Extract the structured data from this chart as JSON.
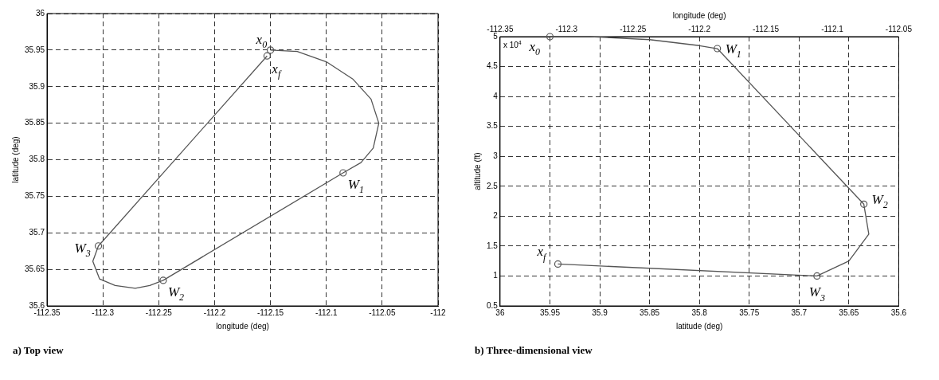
{
  "chart_data": [
    {
      "type": "line",
      "title": "a) Top view",
      "xlabel": "longitude (deg)",
      "ylabel": "latitude (deg)",
      "xlim": [
        -112.35,
        -112
      ],
      "xticks": [
        -112.35,
        -112.3,
        -112.25,
        -112.2,
        -112.15,
        -112.1,
        -112.05,
        -112
      ],
      "ylim": [
        35.6,
        36
      ],
      "yticks": [
        35.6,
        35.65,
        35.7,
        35.75,
        35.8,
        35.85,
        35.9,
        35.95,
        36
      ],
      "grid": true,
      "legend": false,
      "series": [
        {
          "type": "line",
          "color": "#555555",
          "marker": "none",
          "line_style": "solid",
          "x": [
            -112.15,
            -112.126,
            -112.1,
            -112.076,
            -112.06,
            -112.053,
            -112.058,
            -112.069,
            -112.085,
            -112.246,
            -112.258,
            -112.271,
            -112.289,
            -112.303,
            -112.309,
            -112.304,
            -112.153
          ],
          "values": [
            35.95,
            35.948,
            35.934,
            35.91,
            35.883,
            35.85,
            35.816,
            35.796,
            35.782,
            35.635,
            35.628,
            35.624,
            35.628,
            35.637,
            35.661,
            35.682,
            35.942
          ]
        },
        {
          "type": "scatter",
          "color": "#555555",
          "marker": "circle",
          "x": [
            -112.15,
            -112.085,
            -112.246,
            -112.304,
            -112.153
          ],
          "values": [
            35.95,
            35.782,
            35.635,
            35.682,
            35.942
          ]
        }
      ],
      "annotations": [
        {
          "text": "x$_{0}$",
          "x": -112.15,
          "y": 35.95
        },
        {
          "text": "W$_{1}$",
          "x": -112.085,
          "y": 35.782
        },
        {
          "text": "W$_{2}$",
          "x": -112.246,
          "y": 35.635
        },
        {
          "text": "W$_{3}$",
          "x": -112.304,
          "y": 35.682
        },
        {
          "text": "x$_{f}$",
          "x": -112.153,
          "y": 35.942
        }
      ]
    },
    {
      "type": "line",
      "title": "b) Three-dimensional view",
      "xlabel": "latitude (deg)",
      "ylabel": "altitude (ft)",
      "x2label": "longitude (deg)",
      "xlim": [
        36,
        35.6
      ],
      "xticks": [
        36,
        35.95,
        35.9,
        35.85,
        35.8,
        35.75,
        35.7,
        35.65,
        35.6
      ],
      "x2lim": [
        -112.35,
        -112.05
      ],
      "x2ticks": [
        -112.35,
        -112.3,
        -112.25,
        -112.2,
        -112.15,
        -112.1,
        -112.05
      ],
      "ylim": [
        0.5,
        5
      ],
      "yticks": [
        0.5,
        1,
        1.5,
        2,
        2.5,
        3,
        3.5,
        4,
        4.5,
        5
      ],
      "grid": true,
      "legend": false,
      "series": [
        {
          "type": "line",
          "color": "#555555",
          "marker": "none",
          "line_style": "solid",
          "x": [
            35.95,
            35.91,
            35.85,
            35.8,
            35.782,
            35.635,
            35.63,
            35.65,
            35.682,
            35.942
          ],
          "values": [
            5,
            5,
            4.95,
            4.85,
            4.8,
            2.2,
            1.7,
            1.25,
            1,
            1.2
          ]
        },
        {
          "type": "scatter",
          "color": "#555555",
          "marker": "circle",
          "x": [
            35.95,
            35.782,
            35.635,
            35.682,
            35.942
          ],
          "values": [
            5,
            4.8,
            2.2,
            1,
            1.2
          ]
        }
      ],
      "annotations": [
        "x 10$^{4}$",
        {
          "text": "x$_{0}$",
          "x": 35.95,
          "y": 5
        },
        {
          "text": "W$_{1}$",
          "x": 35.782,
          "y": 4.8
        },
        {
          "text": "W$_{2}$",
          "x": 35.635,
          "y": 2.2
        },
        {
          "text": "W$_{3}$",
          "x": 35.682,
          "y": 1
        },
        {
          "text": "x$_{f}$",
          "x": 35.942,
          "y": 1.2
        }
      ]
    }
  ]
}
